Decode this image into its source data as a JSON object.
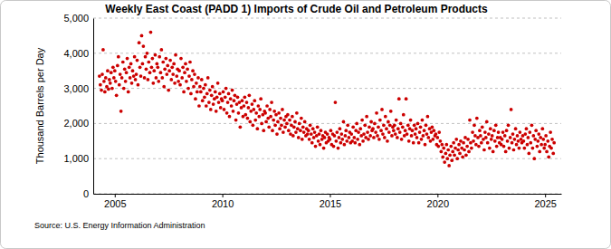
{
  "chart_data": {
    "type": "scatter",
    "title": "Weekly East Coast (PADD 1) Imports of Crude Oil and Petroleum Products",
    "y_label": "Thousand Barrels per Day",
    "source": "Source: U.S. Energy Information Administration",
    "color": "#cc0000",
    "marker": "circle",
    "grid": true,
    "xlim": [
      2004,
      2025.75
    ],
    "xticks": [
      2005,
      2010,
      2015,
      2020,
      2025
    ],
    "ylim": [
      0,
      5000
    ],
    "yticks": [
      0,
      {
        "value": 1000,
        "label": "1,000"
      },
      {
        "value": 2000,
        "label": "2,000"
      },
      {
        "value": 3000,
        "label": "3,000"
      },
      {
        "value": 4000,
        "label": "4,000"
      },
      {
        "value": 5000,
        "label": "5,000"
      }
    ],
    "x": [
      2004.29,
      2004.33,
      2004.38,
      2004.42,
      2004.46,
      2004.5,
      2004.54,
      2004.58,
      2004.63,
      2004.67,
      2004.71,
      2004.75,
      2004.79,
      2004.83,
      2004.88,
      2004.92,
      2004.96,
      2005,
      2005.04,
      2005.08,
      2005.13,
      2005.17,
      2005.21,
      2005.25,
      2005.29,
      2005.33,
      2005.38,
      2005.42,
      2005.46,
      2005.5,
      2005.54,
      2005.58,
      2005.63,
      2005.67,
      2005.71,
      2005.75,
      2005.79,
      2005.83,
      2005.88,
      2005.92,
      2005.96,
      2006,
      2006.04,
      2006.08,
      2006.13,
      2006.17,
      2006.21,
      2006.25,
      2006.29,
      2006.33,
      2006.38,
      2006.42,
      2006.46,
      2006.5,
      2006.54,
      2006.58,
      2006.63,
      2006.67,
      2006.71,
      2006.75,
      2006.79,
      2006.83,
      2006.88,
      2006.92,
      2006.96,
      2007,
      2007.04,
      2007.08,
      2007.13,
      2007.17,
      2007.21,
      2007.25,
      2007.29,
      2007.33,
      2007.38,
      2007.42,
      2007.46,
      2007.5,
      2007.54,
      2007.58,
      2007.63,
      2007.67,
      2007.71,
      2007.75,
      2007.79,
      2007.83,
      2007.88,
      2007.92,
      2007.96,
      2008,
      2008.04,
      2008.08,
      2008.13,
      2008.17,
      2008.21,
      2008.25,
      2008.29,
      2008.33,
      2008.38,
      2008.42,
      2008.46,
      2008.5,
      2008.54,
      2008.58,
      2008.63,
      2008.67,
      2008.71,
      2008.75,
      2008.79,
      2008.83,
      2008.88,
      2008.92,
      2008.96,
      2009,
      2009.04,
      2009.08,
      2009.13,
      2009.17,
      2009.21,
      2009.25,
      2009.29,
      2009.33,
      2009.38,
      2009.42,
      2009.46,
      2009.5,
      2009.54,
      2009.58,
      2009.63,
      2009.67,
      2009.71,
      2009.75,
      2009.79,
      2009.83,
      2009.88,
      2009.92,
      2009.96,
      2010,
      2010.04,
      2010.08,
      2010.13,
      2010.17,
      2010.21,
      2010.25,
      2010.29,
      2010.33,
      2010.38,
      2010.42,
      2010.46,
      2010.5,
      2010.54,
      2010.58,
      2010.63,
      2010.67,
      2010.71,
      2010.75,
      2010.79,
      2010.83,
      2010.88,
      2010.92,
      2010.96,
      2011,
      2011.04,
      2011.08,
      2011.13,
      2011.17,
      2011.21,
      2011.25,
      2011.29,
      2011.33,
      2011.38,
      2011.42,
      2011.46,
      2011.5,
      2011.54,
      2011.58,
      2011.63,
      2011.67,
      2011.71,
      2011.75,
      2011.79,
      2011.83,
      2011.88,
      2011.92,
      2011.96,
      2012,
      2012.04,
      2012.08,
      2012.13,
      2012.17,
      2012.21,
      2012.25,
      2012.29,
      2012.33,
      2012.38,
      2012.42,
      2012.46,
      2012.5,
      2012.54,
      2012.58,
      2012.63,
      2012.67,
      2012.71,
      2012.75,
      2012.79,
      2012.83,
      2012.88,
      2012.92,
      2012.96,
      2013,
      2013.04,
      2013.08,
      2013.13,
      2013.17,
      2013.21,
      2013.25,
      2013.29,
      2013.33,
      2013.38,
      2013.42,
      2013.46,
      2013.5,
      2013.54,
      2013.58,
      2013.63,
      2013.67,
      2013.71,
      2013.75,
      2013.79,
      2013.83,
      2013.88,
      2013.92,
      2013.96,
      2014,
      2014.04,
      2014.08,
      2014.13,
      2014.17,
      2014.21,
      2014.25,
      2014.29,
      2014.33,
      2014.38,
      2014.42,
      2014.46,
      2014.5,
      2014.54,
      2014.58,
      2014.63,
      2014.67,
      2014.71,
      2014.75,
      2014.79,
      2014.83,
      2014.88,
      2014.92,
      2014.96,
      2015,
      2015.04,
      2015.08,
      2015.13,
      2015.17,
      2015.21,
      2015.25,
      2015.29,
      2015.33,
      2015.38,
      2015.42,
      2015.46,
      2015.5,
      2015.54,
      2015.58,
      2015.63,
      2015.67,
      2015.71,
      2015.75,
      2015.79,
      2015.83,
      2015.88,
      2015.92,
      2015.96,
      2016,
      2016.04,
      2016.08,
      2016.13,
      2016.17,
      2016.21,
      2016.25,
      2016.29,
      2016.33,
      2016.38,
      2016.42,
      2016.46,
      2016.5,
      2016.54,
      2016.58,
      2016.63,
      2016.67,
      2016.71,
      2016.75,
      2016.79,
      2016.83,
      2016.88,
      2016.92,
      2016.96,
      2017,
      2017.04,
      2017.08,
      2017.13,
      2017.17,
      2017.21,
      2017.25,
      2017.29,
      2017.33,
      2017.38,
      2017.42,
      2017.46,
      2017.5,
      2017.54,
      2017.58,
      2017.63,
      2017.67,
      2017.71,
      2017.75,
      2017.79,
      2017.83,
      2017.88,
      2017.92,
      2017.96,
      2018,
      2018.04,
      2018.08,
      2018.13,
      2018.17,
      2018.21,
      2018.25,
      2018.29,
      2018.33,
      2018.38,
      2018.42,
      2018.46,
      2018.5,
      2018.54,
      2018.58,
      2018.63,
      2018.67,
      2018.71,
      2018.75,
      2018.79,
      2018.83,
      2018.88,
      2018.92,
      2018.96,
      2019,
      2019.04,
      2019.08,
      2019.13,
      2019.17,
      2019.21,
      2019.25,
      2019.29,
      2019.33,
      2019.38,
      2019.42,
      2019.46,
      2019.5,
      2019.54,
      2019.58,
      2019.63,
      2019.67,
      2019.71,
      2019.75,
      2019.79,
      2019.83,
      2019.88,
      2019.92,
      2019.96,
      2020,
      2020.04,
      2020.08,
      2020.13,
      2020.17,
      2020.21,
      2020.25,
      2020.29,
      2020.33,
      2020.38,
      2020.42,
      2020.46,
      2020.5,
      2020.54,
      2020.58,
      2020.63,
      2020.67,
      2020.71,
      2020.75,
      2020.79,
      2020.83,
      2020.88,
      2020.92,
      2020.96,
      2021,
      2021.04,
      2021.08,
      2021.13,
      2021.17,
      2021.21,
      2021.25,
      2021.29,
      2021.33,
      2021.38,
      2021.42,
      2021.46,
      2021.5,
      2021.54,
      2021.58,
      2021.63,
      2021.67,
      2021.71,
      2021.75,
      2021.79,
      2021.83,
      2021.88,
      2021.92,
      2021.96,
      2022,
      2022.04,
      2022.08,
      2022.13,
      2022.17,
      2022.21,
      2022.25,
      2022.29,
      2022.33,
      2022.38,
      2022.42,
      2022.46,
      2022.5,
      2022.54,
      2022.58,
      2022.63,
      2022.67,
      2022.71,
      2022.75,
      2022.79,
      2022.83,
      2022.88,
      2022.92,
      2022.96,
      2023,
      2023.04,
      2023.08,
      2023.13,
      2023.17,
      2023.21,
      2023.25,
      2023.29,
      2023.33,
      2023.38,
      2023.42,
      2023.46,
      2023.5,
      2023.54,
      2023.58,
      2023.63,
      2023.67,
      2023.71,
      2023.75,
      2023.79,
      2023.83,
      2023.88,
      2023.92,
      2023.96,
      2024,
      2024.04,
      2024.08,
      2024.13,
      2024.17,
      2024.21,
      2024.25,
      2024.29,
      2024.33,
      2024.38,
      2024.42,
      2024.46,
      2024.5,
      2024.54,
      2024.58,
      2024.63,
      2024.67,
      2024.71,
      2024.75,
      2024.79,
      2024.83,
      2024.88,
      2024.92,
      2024.96,
      2025,
      2025.04,
      2025.08,
      2025.13,
      2025.17,
      2025.21,
      2025.25,
      2025.29,
      2025.33,
      2025.38,
      2025.42
    ],
    "values": [
      3350,
      3100,
      2950,
      3400,
      4100,
      3200,
      2900,
      3300,
      3050,
      3500,
      2980,
      3250,
      3150,
      3450,
      3000,
      3600,
      3300,
      3500,
      3200,
      2800,
      3650,
      3900,
      3100,
      3400,
      2350,
      3300,
      3750,
      3000,
      3550,
      3200,
      3450,
      3850,
      2900,
      3600,
      3300,
      3700,
      3150,
      3500,
      3350,
      3900,
      3250,
      3400,
      3800,
      3100,
      4300,
      3600,
      3350,
      4500,
      3700,
      4200,
      3300,
      3900,
      3550,
      4000,
      3250,
      3750,
      3450,
      4600,
      3600,
      3850,
      3150,
      3500,
      3950,
      3300,
      3700,
      3600,
      3200,
      3900,
      3450,
      4100,
      3300,
      3750,
      3050,
      3550,
      3850,
      3400,
      3650,
      2950,
      3500,
      3800,
      3250,
      3600,
      3400,
      3700,
      3150,
      3950,
      3350,
      3550,
      3200,
      3500,
      3100,
      3850,
      3300,
      3600,
      2900,
      3450,
      3700,
      3200,
      3550,
      3000,
      3350,
      3750,
      2850,
      3250,
      3500,
      3050,
      3400,
      2700,
      3150,
      2900,
      3300,
      2500,
      3050,
      2900,
      3250,
      2650,
      3000,
      2750,
      3100,
      2500,
      2850,
      3300,
      2600,
      2950,
      2400,
      2800,
      3050,
      2550,
      2700,
      2900,
      2350,
      2750,
      3150,
      2600,
      2850,
      2450,
      2700,
      2650,
      2900,
      2400,
      2750,
      3000,
      2300,
      2600,
      2850,
      2200,
      2700,
      2500,
      2950,
      2350,
      2650,
      2800,
      2100,
      2550,
      2750,
      2300,
      2600,
      1900,
      2450,
      2650,
      2200,
      2500,
      2750,
      2250,
      2600,
      2150,
      2450,
      2800,
      2050,
      2350,
      2550,
      1950,
      2400,
      2650,
      2100,
      2300,
      1850,
      2500,
      2200,
      2400,
      2700,
      2000,
      2250,
      1800,
      2350,
      2300,
      2050,
      2500,
      2150,
      1900,
      2400,
      2200,
      2600,
      1800,
      2100,
      2350,
      1950,
      2250,
      1700,
      2050,
      2300,
      1850,
      2150,
      1950,
      2400,
      1750,
      2100,
      1900,
      2200,
      2000,
      2250,
      1800,
      2100,
      1700,
      1950,
      2200,
      1650,
      1900,
      2050,
      1750,
      2300,
      1850,
      1600,
      2000,
      1800,
      2150,
      1550,
      1900,
      1750,
      2050,
      1650,
      1850,
      1700,
      1800,
      1550,
      1950,
      1700,
      1450,
      1850,
      1600,
      1750,
      1350,
      1650,
      1900,
      1500,
      1700,
      1400,
      1800,
      1550,
      1650,
      1300,
      1600,
      1750,
      1450,
      1700,
      1500,
      1600,
      1550,
      1800,
      1400,
      1700,
      1350,
      1650,
      2600,
      1500,
      1750,
      1300,
      1600,
      1850,
      1450,
      1700,
      1550,
      2050,
      1400,
      1650,
      1800,
      1500,
      1950,
      1600,
      1750,
      1450,
      1700,
      1500,
      1900,
      1600,
      1450,
      1800,
      2000,
      1550,
      1750,
      1400,
      1850,
      1650,
      2100,
      1500,
      1700,
      1950,
      1600,
      2200,
      1750,
      1550,
      1900,
      1650,
      2050,
      1800,
      1850,
      1600,
      2000,
      1750,
      2300,
      1650,
      1900,
      1550,
      2100,
      1800,
      2400,
      1700,
      1950,
      1600,
      2200,
      1850,
      1500,
      2050,
      1750,
      1950,
      2350,
      1650,
      1900,
      1800,
      1950,
      1700,
      2100,
      1600,
      1850,
      2700,
      1750,
      2000,
      1550,
      1900,
      2250,
      1650,
      1800,
      2700,
      1700,
      1950,
      1500,
      1850,
      2100,
      1650,
      1800,
      1450,
      1950,
      1700,
      1850,
      1600,
      2000,
      1450,
      1750,
      1900,
      1550,
      2100,
      1650,
      1800,
      1400,
      1950,
      1700,
      2200,
      1600,
      1850,
      1500,
      1750,
      1900,
      1550,
      1800,
      1650,
      1700,
      1400,
      1600,
      1350,
      1750,
      1500,
      1200,
      1400,
      1050,
      1300,
      900,
      1150,
      1400,
      1000,
      1250,
      800,
      1100,
      1350,
      950,
      1200,
      1450,
      1100,
      1300,
      1550,
      1000,
      1250,
      1400,
      1150,
      1500,
      1300,
      1050,
      1450,
      1250,
      1600,
      1100,
      1350,
      1550,
      1200,
      2100,
      1450,
      1300,
      1750,
      1500,
      1950,
      1650,
      1400,
      2150,
      1600,
      1350,
      1800,
      1650,
      1450,
      1900,
      1550,
      1250,
      1750,
      1600,
      2050,
      1450,
      1700,
      1300,
      1850,
      1550,
      1650,
      1200,
      1800,
      1500,
      1950,
      1350,
      1600,
      1750,
      1450,
      1600,
      1400,
      1550,
      1750,
      1350,
      1650,
      1200,
      1800,
      1500,
      1950,
      1300,
      1600,
      2400,
      1450,
      1700,
      1250,
      1550,
      1850,
      1400,
      1650,
      1500,
      1300,
      1750,
      1550,
      1450,
      1650,
      1500,
      1300,
      1700,
      1850,
      1400,
      1600,
      1150,
      1750,
      1450,
      1950,
      1300,
      1650,
      1000,
      1550,
      1800,
      1350,
      1500,
      1700,
      1200,
      1600,
      1400,
      1850,
      1550,
      1300,
      1400,
      1650,
      1200,
      1500,
      1050,
      1350,
      1750,
      1300,
      1550,
      1150,
      1450
    ]
  }
}
